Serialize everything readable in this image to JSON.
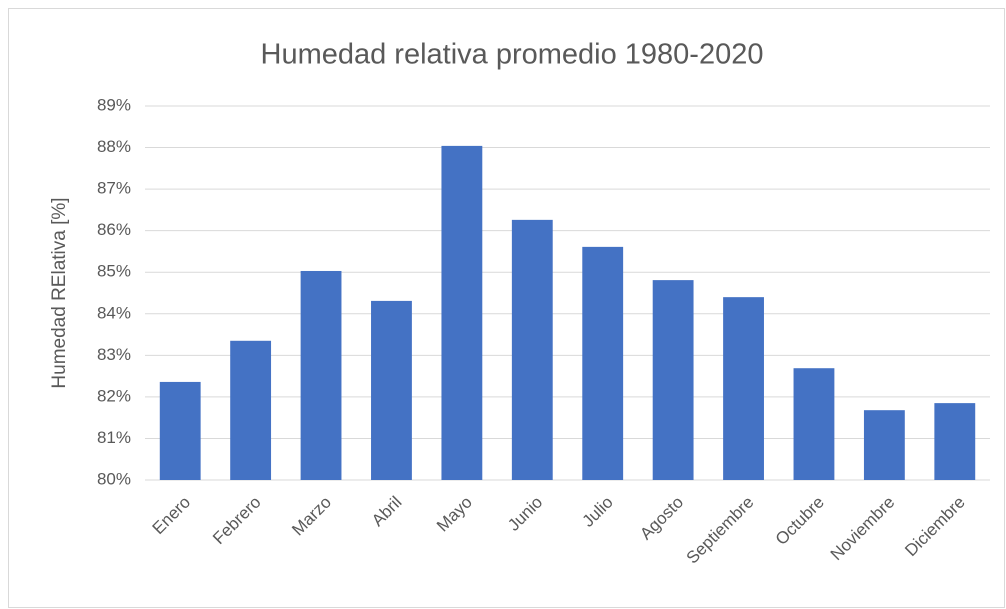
{
  "chart_data": {
    "type": "bar",
    "title": "Humedad relativa promedio 1980-2020",
    "y_label": "Humedad RElativa [%]",
    "categories": [
      "Enero",
      "Febrero",
      "Marzo",
      "Abril",
      "Mayo",
      "Junio",
      "Julio",
      "Agosto",
      "Septiembre",
      "Octubre",
      "Noviembre",
      "Diciembre"
    ],
    "values": [
      82.36,
      83.35,
      85.03,
      84.31,
      88.04,
      86.26,
      85.61,
      84.81,
      84.4,
      82.69,
      81.68,
      81.85
    ],
    "color": "#4472c4",
    "ylim": [
      80,
      89
    ],
    "yticks": [
      {
        "value": 80,
        "label": "80%"
      },
      {
        "value": 81,
        "label": "81%"
      },
      {
        "value": 82,
        "label": "82%"
      },
      {
        "value": 83,
        "label": "83%"
      },
      {
        "value": 84,
        "label": "84%"
      },
      {
        "value": 85,
        "label": "85%"
      },
      {
        "value": 86,
        "label": "86%"
      },
      {
        "value": 87,
        "label": "87%"
      },
      {
        "value": 88,
        "label": "88%"
      },
      {
        "value": 89,
        "label": "89%"
      }
    ],
    "grid": true
  }
}
